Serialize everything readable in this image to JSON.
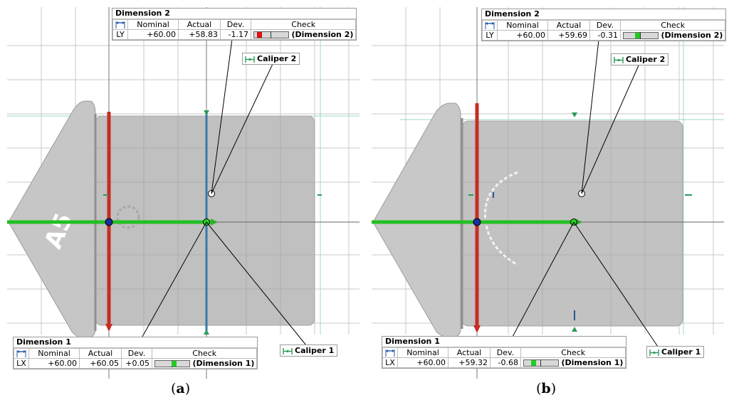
{
  "colors": {
    "x_axis": "#22c022",
    "y_axis": "#c62d22",
    "caliper_line": "#3a78a8",
    "marker_bad": "#dd1111",
    "marker_ok": "#22cc22",
    "part_gray": "#c3c3c3",
    "grid": "#c8c8c8"
  },
  "icons": [
    "dimension-arrows-icon",
    "caliper-icon"
  ],
  "panels": [
    {
      "id": "a",
      "label": "(a)",
      "label_letter": "a",
      "dim2": {
        "title": "Dimension 2",
        "headers": [
          "Nominal",
          "Actual",
          "Dev.",
          "Check"
        ],
        "axis": "LY",
        "nominal": "+60.00",
        "actual": "+58.83",
        "dev": "-1.17",
        "check_name": "Dimension 2",
        "check_fraction": 0.1,
        "check_status": "out-of-tolerance"
      },
      "dim1": {
        "title": "Dimension 1",
        "headers": [
          "Nominal",
          "Actual",
          "Dev.",
          "Check"
        ],
        "axis": "LX",
        "nominal": "+60.00",
        "actual": "+60.05",
        "dev": "+0.05",
        "check_name": "Dimension 1",
        "check_fraction": 0.55,
        "check_status": "in-tolerance"
      },
      "caliper2": "Caliper 2",
      "caliper1": "Caliper 1",
      "watermark": "A5"
    },
    {
      "id": "b",
      "label": "(b)",
      "label_letter": "b",
      "dim2": {
        "title": "Dimension 2",
        "headers": [
          "Nominal",
          "Actual",
          "Dev.",
          "Check"
        ],
        "axis": "LY",
        "nominal": "+60.00",
        "actual": "+59.69",
        "dev": "-0.31",
        "check_name": "Dimension 2",
        "check_fraction": 0.4,
        "check_status": "in-tolerance"
      },
      "dim1": {
        "title": "Dimension 1",
        "headers": [
          "Nominal",
          "Actual",
          "Dev.",
          "Check"
        ],
        "axis": "LX",
        "nominal": "+60.00",
        "actual": "+59.32",
        "dev": "-0.68",
        "check_name": "Dimension 1",
        "check_fraction": 0.25,
        "check_status": "in-tolerance"
      },
      "caliper2": "Caliper 2",
      "caliper1": "Caliper 1",
      "watermark": ""
    }
  ]
}
